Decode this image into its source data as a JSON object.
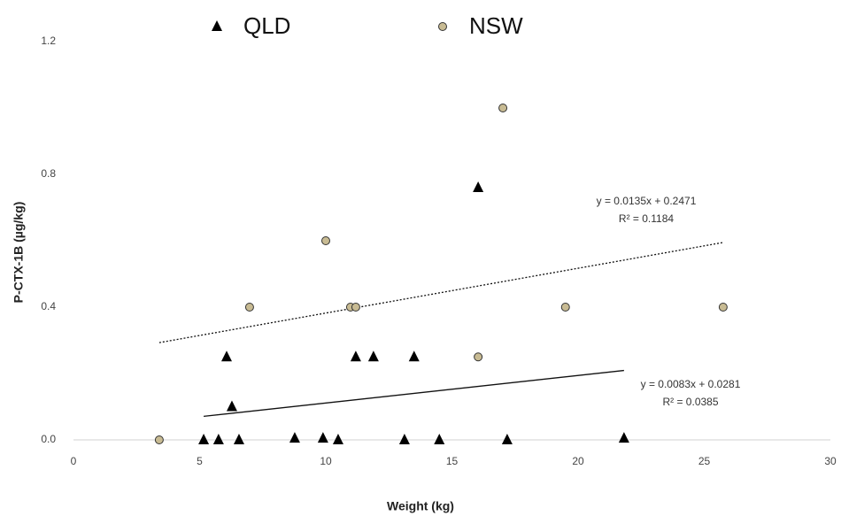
{
  "chart_data": {
    "type": "scatter",
    "x_label": "Weight (kg)",
    "y_label": "P-CTX-1B (µg/kg)",
    "xlim": [
      0,
      30
    ],
    "xticks": [
      0,
      5,
      10,
      15,
      20,
      25,
      30
    ],
    "ylim": [
      0,
      1.2
    ],
    "yticks": [
      {
        "value": 0,
        "label": "0.0"
      },
      {
        "value": 0.4,
        "label": "0.4"
      },
      {
        "value": 0.8,
        "label": "0.8"
      },
      {
        "value": 1.2,
        "label": "1.2"
      }
    ],
    "grid": false,
    "legend": "top",
    "series": [
      {
        "name": "QLD",
        "color": "#000000",
        "marker": "triangle",
        "x": [
          5.16,
          5.75,
          6.56,
          8.77,
          9.89,
          10.49,
          13.12,
          14.5,
          17.19,
          21.82,
          6.07,
          6.28,
          11.19,
          11.89,
          13.5,
          16.04
        ],
        "values": [
          0,
          0,
          0,
          0.005,
          0.005,
          0,
          0,
          0,
          0,
          0.005,
          0.25,
          0.1,
          0.25,
          0.25,
          0.25,
          0.76
        ],
        "trendline": {
          "equation": "y = 0.0083x + 0.0281",
          "r2": "R² = 0.0385",
          "slope": 0.0083,
          "intercept": 0.0281,
          "style": "solid"
        }
      },
      {
        "name": "NSW",
        "color": "#c8bb93",
        "marker": "circle",
        "x": [
          3.4,
          6.98,
          10.0,
          10.98,
          11.19,
          16.04,
          17.02,
          19.5,
          25.75
        ],
        "values": [
          0,
          0.4,
          0.6,
          0.4,
          0.4,
          0.25,
          1.0,
          0.4,
          0.4
        ],
        "trendline": {
          "equation": "y = 0.0135x + 0.2471",
          "r2": "R² = 0.1184",
          "slope": 0.0135,
          "intercept": 0.2471,
          "style": "dotted"
        }
      }
    ]
  }
}
